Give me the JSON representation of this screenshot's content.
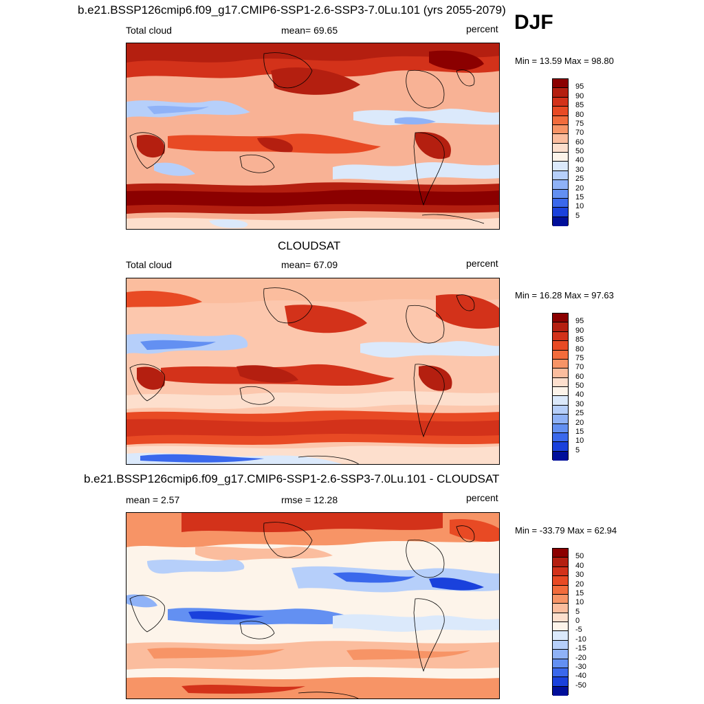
{
  "season": "DJF",
  "panels": [
    {
      "title": "b.e21.BSSP126cmip6.f09_g17.CMIP6-SSP1-2.6-SSP3-7.0Lu.101 (yrs 2055-2079)",
      "left_label": "Total cloud",
      "center_label": "mean=  69.65",
      "right_label": "percent",
      "minmax": "Min =  13.59 Max =  98.80",
      "colorbar_labels": [
        "95",
        "90",
        "85",
        "80",
        "75",
        "70",
        "60",
        "50",
        "40",
        "30",
        "25",
        "20",
        "15",
        "10",
        "5"
      ],
      "colorbar_colors": [
        "#8b0000",
        "#b41f10",
        "#d3321a",
        "#e84a24",
        "#f26c3c",
        "#f79466",
        "#fbbd9e",
        "#fddfcd",
        "#fdf4ea",
        "#dbe9fb",
        "#b6cffa",
        "#8fb2f7",
        "#6390f2",
        "#3a68ec",
        "#1a41dc",
        "#000f9a"
      ],
      "variant": "model"
    },
    {
      "title": "CLOUDSAT",
      "left_label": "Total cloud",
      "center_label": "mean=  67.09",
      "right_label": "percent",
      "minmax": "Min =  16.28 Max =  97.63",
      "colorbar_labels": [
        "95",
        "90",
        "85",
        "80",
        "75",
        "70",
        "60",
        "50",
        "40",
        "30",
        "25",
        "20",
        "15",
        "10",
        "5"
      ],
      "colorbar_colors": [
        "#8b0000",
        "#b41f10",
        "#d3321a",
        "#e84a24",
        "#f26c3c",
        "#f79466",
        "#fbbd9e",
        "#fddfcd",
        "#fdf4ea",
        "#dbe9fb",
        "#b6cffa",
        "#8fb2f7",
        "#6390f2",
        "#3a68ec",
        "#1a41dc",
        "#000f9a"
      ],
      "variant": "obs"
    },
    {
      "title": "b.e21.BSSP126cmip6.f09_g17.CMIP6-SSP1-2.6-SSP3-7.0Lu.101 - CLOUDSAT",
      "left_label": "mean =   2.57",
      "center_label": "rmse =  12.28",
      "right_label": "percent",
      "minmax": "Min = -33.79 Max =  62.94",
      "colorbar_labels": [
        "50",
        "40",
        "30",
        "20",
        "15",
        "10",
        "5",
        "0",
        "-5",
        "-10",
        "-15",
        "-20",
        "-30",
        "-40",
        "-50"
      ],
      "colorbar_colors": [
        "#8b0000",
        "#b41f10",
        "#d3321a",
        "#e84a24",
        "#f26c3c",
        "#f79466",
        "#fbbd9e",
        "#fddfcd",
        "#fdf4ea",
        "#dbe9fb",
        "#b6cffa",
        "#8fb2f7",
        "#6390f2",
        "#3a68ec",
        "#1a41dc",
        "#000f9a"
      ],
      "variant": "diff"
    }
  ]
}
